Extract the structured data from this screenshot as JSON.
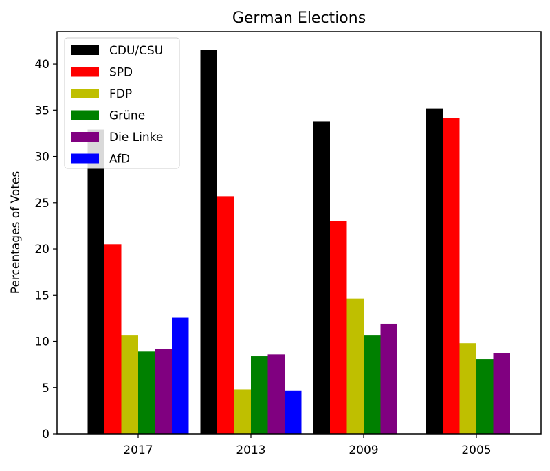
{
  "chart_data": {
    "type": "bar",
    "title": "German Elections",
    "xlabel": "",
    "ylabel": "Percentages of Votes",
    "categories": [
      "2017",
      "2013",
      "2009",
      "2005"
    ],
    "ylim": [
      0,
      43.5
    ],
    "yticks": [
      0,
      5,
      10,
      15,
      20,
      25,
      30,
      35,
      40
    ],
    "legend_position": "top-left",
    "series": [
      {
        "name": "CDU/CSU",
        "color": "#000000",
        "values": [
          32.9,
          41.5,
          33.8,
          35.2
        ]
      },
      {
        "name": "SPD",
        "color": "#ff0000",
        "values": [
          20.5,
          25.7,
          23.0,
          34.2
        ]
      },
      {
        "name": "FDP",
        "color": "#bfbf00",
        "values": [
          10.7,
          4.8,
          14.6,
          9.8
        ]
      },
      {
        "name": "Grüne",
        "color": "#008000",
        "values": [
          8.9,
          8.4,
          10.7,
          8.1
        ]
      },
      {
        "name": "Die Linke",
        "color": "#800080",
        "values": [
          9.2,
          8.6,
          11.9,
          8.7
        ]
      },
      {
        "name": "AfD",
        "color": "#0000ff",
        "values": [
          12.6,
          4.7,
          null,
          null
        ]
      }
    ]
  }
}
